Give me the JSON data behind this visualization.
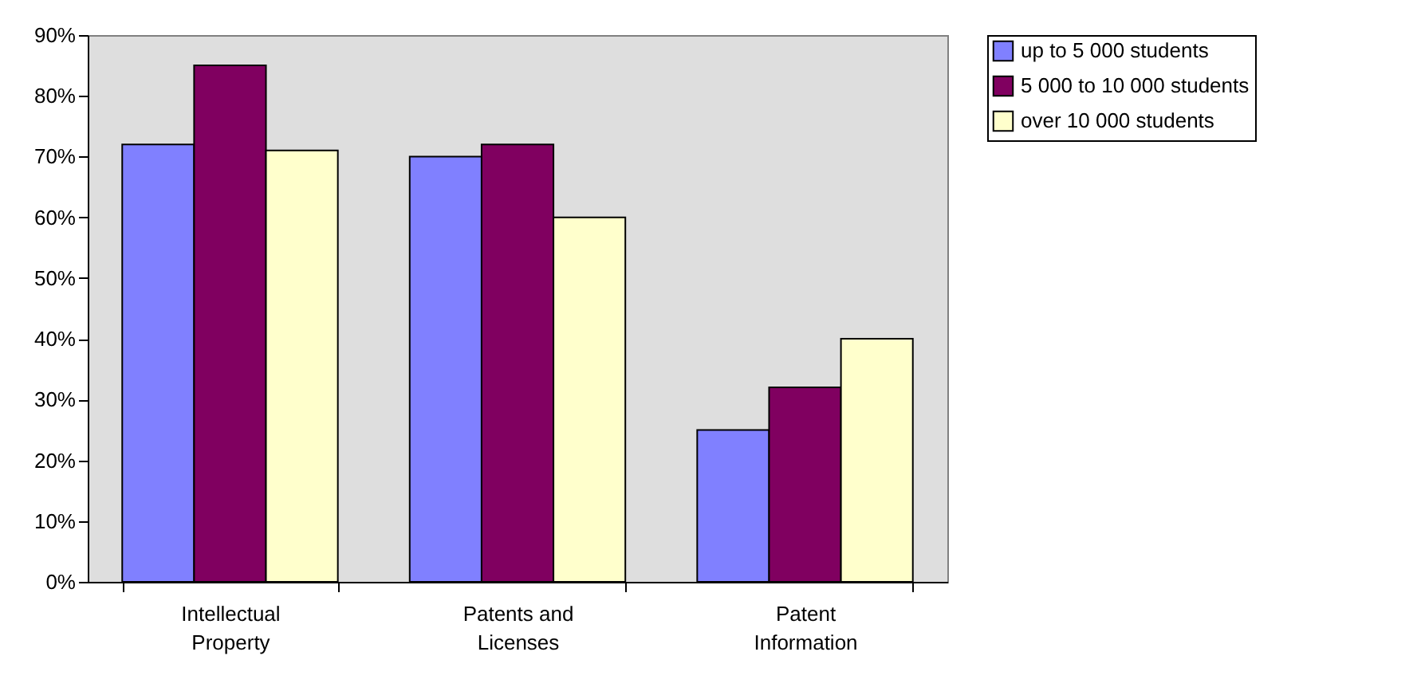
{
  "chart_data": {
    "type": "bar",
    "categories": [
      "Intellectual Property",
      "Patents and Licenses",
      "Patent Information"
    ],
    "series": [
      {
        "name": "up to 5 000 students",
        "color": "#8080ff",
        "values": [
          72,
          70,
          25
        ]
      },
      {
        "name": "5 000 to 10 000 students",
        "color": "#800060",
        "values": [
          85,
          72,
          32
        ]
      },
      {
        "name": "over 10 000 students",
        "color": "#ffffcc",
        "values": [
          71,
          60,
          40
        ]
      }
    ],
    "ylim": [
      0,
      90
    ],
    "yticks": [
      {
        "value": 0,
        "label": "0%"
      },
      {
        "value": 10,
        "label": "10%"
      },
      {
        "value": 20,
        "label": "20%"
      },
      {
        "value": 30,
        "label": "30%"
      },
      {
        "value": 40,
        "label": "40%"
      },
      {
        "value": 50,
        "label": "50%"
      },
      {
        "value": 60,
        "label": "60%"
      },
      {
        "value": 70,
        "label": "70%"
      },
      {
        "value": 80,
        "label": "80%"
      },
      {
        "value": 90,
        "label": "90%"
      }
    ],
    "grid": false,
    "legend": "right"
  }
}
